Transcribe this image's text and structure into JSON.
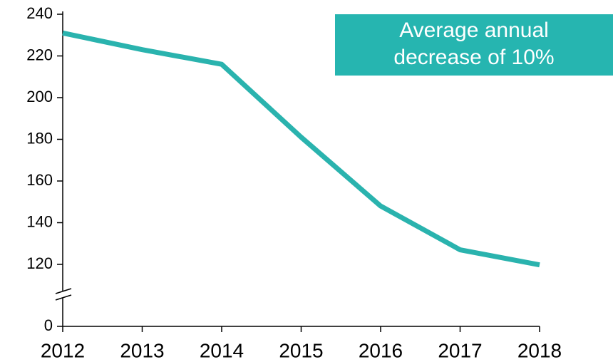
{
  "chart_data": {
    "type": "line",
    "annotation": "Average annual decrease of 10%",
    "categories": [
      "2012",
      "2013",
      "2014",
      "2015",
      "2016",
      "2017",
      "2018"
    ],
    "values": [
      231,
      223,
      216,
      181,
      148,
      127,
      119
    ],
    "color": "#2ab3ae",
    "ylim": [
      0,
      240
    ],
    "yticks": [
      0,
      120,
      140,
      160,
      180,
      200,
      220,
      240
    ],
    "axis_break": true
  }
}
